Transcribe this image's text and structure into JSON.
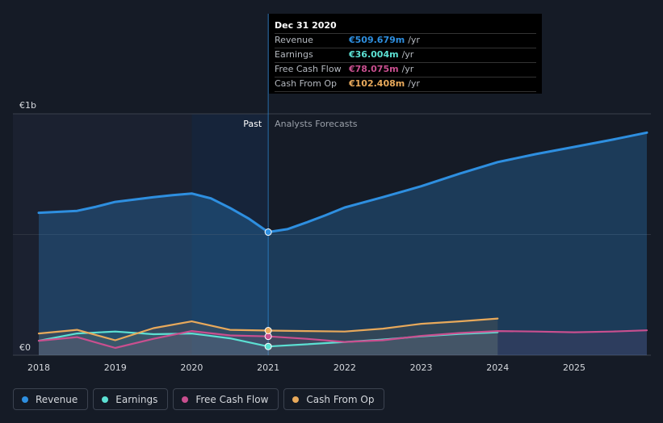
{
  "tooltip": {
    "date": "Dec 31 2020",
    "rows": [
      {
        "label": "Revenue",
        "value": "€509.679m",
        "unit": "/yr",
        "color": "#2e8fe0"
      },
      {
        "label": "Earnings",
        "value": "€36.004m",
        "unit": "/yr",
        "color": "#5ce0d3"
      },
      {
        "label": "Free Cash Flow",
        "value": "€78.075m",
        "unit": "/yr",
        "color": "#c94f8f"
      },
      {
        "label": "Cash From Op",
        "value": "€102.408m",
        "unit": "/yr",
        "color": "#e8a95b"
      }
    ]
  },
  "legend": [
    {
      "label": "Revenue",
      "color": "#2e8fe0"
    },
    {
      "label": "Earnings",
      "color": "#5ce0d3"
    },
    {
      "label": "Free Cash Flow",
      "color": "#c94f8f"
    },
    {
      "label": "Cash From Op",
      "color": "#e8a95b"
    }
  ],
  "chart_data": {
    "type": "line",
    "title": "",
    "xlabel": "",
    "ylabel": "",
    "xlim": [
      2017.9,
      2025.95
    ],
    "ylim": [
      0,
      1000
    ],
    "y_tick_labels": [
      {
        "value": 1000,
        "label": "€1b"
      },
      {
        "value": 0,
        "label": "€0"
      }
    ],
    "x_ticks": [
      2018,
      2019,
      2020,
      2021,
      2022,
      2023,
      2024,
      2025
    ],
    "past_label": "Past",
    "forecast_label": "Analysts Forecasts",
    "divider_x": 2021.0,
    "highlight_start": 2020.0,
    "selected_x": 2021.0,
    "series": [
      {
        "name": "Revenue",
        "color": "#2e8fe0",
        "area": true,
        "x": [
          2018.0,
          2018.5,
          2018.75,
          2019.0,
          2019.5,
          2019.75,
          2020.0,
          2020.25,
          2020.5,
          2020.75,
          2021.0,
          2021.25,
          2021.5,
          2021.75,
          2022.0,
          2022.5,
          2023.0,
          2023.5,
          2024.0,
          2024.5,
          2025.0,
          2025.5,
          2025.95
        ],
        "values": [
          590,
          598,
          615,
          635,
          655,
          663,
          670,
          650,
          610,
          565,
          510,
          522,
          550,
          580,
          612,
          655,
          700,
          752,
          800,
          833,
          863,
          893,
          922
        ]
      },
      {
        "name": "Earnings",
        "color": "#5ce0d3",
        "x": [
          2018.0,
          2018.5,
          2019.0,
          2019.5,
          2020.0,
          2020.5,
          2021.0,
          2021.5,
          2022.0,
          2022.5,
          2023.0,
          2023.5,
          2024.0
        ],
        "values": [
          60,
          90,
          98,
          87,
          90,
          70,
          36,
          45,
          55,
          65,
          78,
          88,
          95
        ]
      },
      {
        "name": "Free Cash Flow",
        "color": "#c94f8f",
        "x": [
          2018.0,
          2018.5,
          2019.0,
          2019.5,
          2020.0,
          2020.5,
          2021.0,
          2021.5,
          2022.0,
          2022.5,
          2023.0,
          2023.5,
          2024.0,
          2024.5,
          2025.0,
          2025.5,
          2025.95
        ],
        "values": [
          60,
          75,
          30,
          68,
          100,
          82,
          78,
          68,
          55,
          62,
          80,
          92,
          100,
          98,
          95,
          98,
          103
        ]
      },
      {
        "name": "Cash From Op",
        "color": "#e8a95b",
        "x": [
          2018.0,
          2018.5,
          2019.0,
          2019.5,
          2020.0,
          2020.5,
          2021.0,
          2021.5,
          2022.0,
          2022.5,
          2023.0,
          2023.5,
          2024.0
        ],
        "values": [
          90,
          105,
          62,
          112,
          140,
          105,
          102,
          100,
          98,
          110,
          130,
          140,
          152
        ]
      }
    ]
  }
}
